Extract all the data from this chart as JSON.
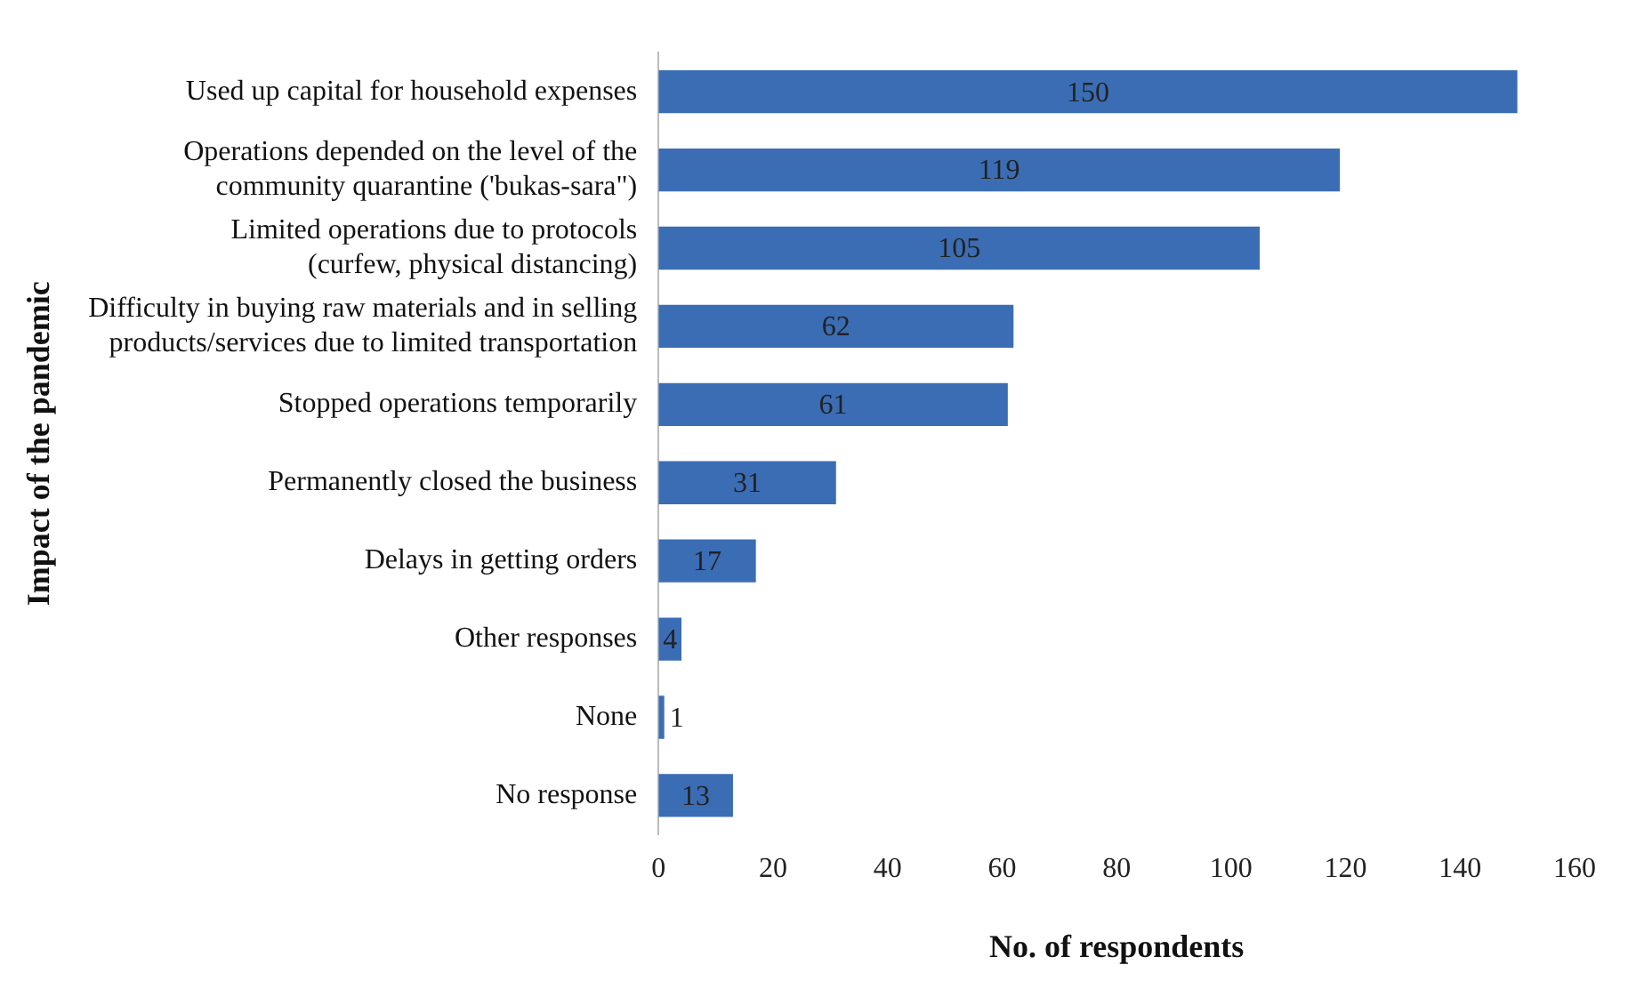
{
  "chart_data": {
    "type": "bar",
    "orientation": "horizontal",
    "xlabel": "No. of respondents",
    "ylabel": "Impact of the pandemic",
    "categories": [
      "Used up capital for household expenses",
      "Operations depended on the level of the\ncommunity quarantine ('bukas-sara\")",
      "Limited operations due to protocols\n(curfew, physical distancing)",
      "Difficulty in buying raw materials and in selling\nproducts/services due to limited transportation",
      "Stopped operations temporarily",
      "Permanently closed the business",
      "Delays in getting orders",
      "Other responses",
      "None",
      "No response"
    ],
    "values": [
      150,
      119,
      105,
      62,
      61,
      31,
      17,
      4,
      1,
      13
    ],
    "color": "#3b6db5",
    "xlim": [
      0,
      160
    ],
    "xticks": [
      0,
      20,
      40,
      60,
      80,
      100,
      120,
      140,
      160
    ],
    "grid": false,
    "legend": false,
    "data_labels": true
  }
}
